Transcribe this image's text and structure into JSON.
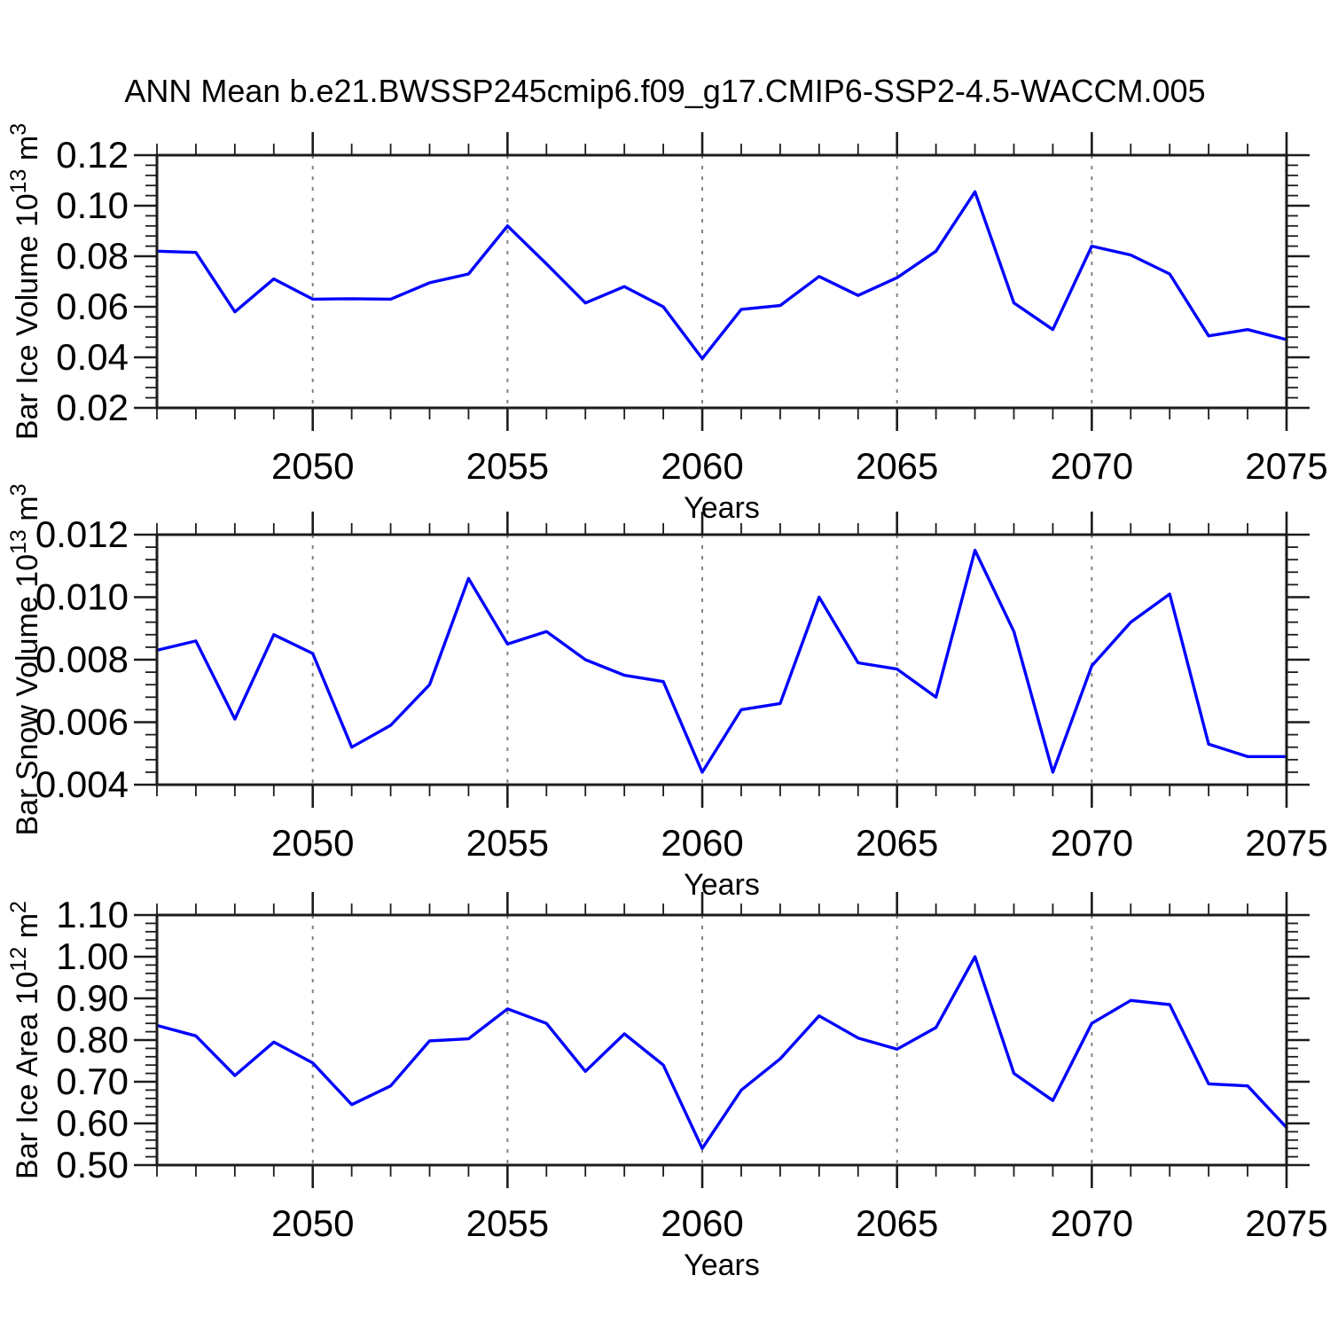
{
  "title": "ANN Mean b.e21.BWSSP245cmip6.f09_g17.CMIP6-SSP2-4.5-WACCM.005",
  "colors": {
    "line": "#0000ff",
    "frame": "#1c1c1c",
    "grid": "#828282",
    "text": "#000000",
    "background": "#ffffff"
  },
  "chart_data": [
    {
      "type": "line",
      "name": "bar-ice-volume",
      "ylabel": "Bar Ice Volume 10^13 m^3",
      "ylabel_parts": [
        {
          "text": "Bar Ice Volume 10"
        },
        {
          "text": "13",
          "sup": true
        },
        {
          "text": " m"
        },
        {
          "text": "3",
          "sup": true
        }
      ],
      "xlabel": "Years",
      "x": [
        2046,
        2047,
        2048,
        2049,
        2050,
        2051,
        2052,
        2053,
        2054,
        2055,
        2056,
        2057,
        2058,
        2059,
        2060,
        2061,
        2062,
        2063,
        2064,
        2065,
        2066,
        2067,
        2068,
        2069,
        2070,
        2071,
        2072,
        2073,
        2074,
        2075
      ],
      "values": [
        0.082,
        0.0815,
        0.058,
        0.071,
        0.063,
        0.0632,
        0.063,
        0.0695,
        0.073,
        0.092,
        0.077,
        0.0615,
        0.068,
        0.06,
        0.0395,
        0.059,
        0.0605,
        0.072,
        0.0645,
        0.0715,
        0.082,
        0.1055,
        0.0615,
        0.051,
        0.084,
        0.0805,
        0.073,
        0.0485,
        0.051,
        0.047
      ],
      "ylim": [
        0.02,
        0.12
      ],
      "ytick_values": [
        0.02,
        0.04,
        0.06,
        0.08,
        0.1,
        0.12
      ],
      "ytick_labels": [
        "0.02",
        "0.04",
        "0.06",
        "0.08",
        "0.10",
        "0.12"
      ],
      "yminor_step": 0.004,
      "xlim": [
        2046,
        2075
      ],
      "xtick_values": [
        2050,
        2055,
        2060,
        2065,
        2070,
        2075
      ],
      "xtick_labels": [
        "2050",
        "2055",
        "2060",
        "2065",
        "2070",
        "2075"
      ],
      "xminor_step": 1,
      "grid_x": [
        2050,
        2055,
        2060,
        2065,
        2070
      ]
    },
    {
      "type": "line",
      "name": "bar-snow-volume",
      "ylabel": "Bar Snow Volume 10^13 m^3",
      "ylabel_parts": [
        {
          "text": "Bar Snow Volume 10"
        },
        {
          "text": "13",
          "sup": true
        },
        {
          "text": " m"
        },
        {
          "text": "3",
          "sup": true
        }
      ],
      "xlabel": "Years",
      "x": [
        2046,
        2047,
        2048,
        2049,
        2050,
        2051,
        2052,
        2053,
        2054,
        2055,
        2056,
        2057,
        2058,
        2059,
        2060,
        2061,
        2062,
        2063,
        2064,
        2065,
        2066,
        2067,
        2068,
        2069,
        2070,
        2071,
        2072,
        2073,
        2074,
        2075
      ],
      "values": [
        0.0083,
        0.0086,
        0.0061,
        0.0088,
        0.0082,
        0.0052,
        0.0059,
        0.0072,
        0.0106,
        0.0085,
        0.0089,
        0.008,
        0.0075,
        0.0073,
        0.0044,
        0.0064,
        0.0066,
        0.01,
        0.0079,
        0.0077,
        0.0068,
        0.0115,
        0.0089,
        0.0044,
        0.0078,
        0.0092,
        0.0101,
        0.0053,
        0.0049,
        0.0049
      ],
      "ylim": [
        0.004,
        0.012
      ],
      "ytick_values": [
        0.004,
        0.006,
        0.008,
        0.01,
        0.012
      ],
      "ytick_labels": [
        "0.004",
        "0.006",
        "0.008",
        "0.010",
        "0.012"
      ],
      "yminor_step": 0.0004,
      "xlim": [
        2046,
        2075
      ],
      "xtick_values": [
        2050,
        2055,
        2060,
        2065,
        2070,
        2075
      ],
      "xtick_labels": [
        "2050",
        "2055",
        "2060",
        "2065",
        "2070",
        "2075"
      ],
      "xminor_step": 1,
      "grid_x": [
        2050,
        2055,
        2060,
        2065,
        2070
      ]
    },
    {
      "type": "line",
      "name": "bar-ice-area",
      "ylabel": "Bar Ice Area 10^12 m^2",
      "ylabel_parts": [
        {
          "text": "Bar Ice Area 10"
        },
        {
          "text": "12",
          "sup": true
        },
        {
          "text": " m"
        },
        {
          "text": "2",
          "sup": true
        }
      ],
      "xlabel": "Years",
      "x": [
        2046,
        2047,
        2048,
        2049,
        2050,
        2051,
        2052,
        2053,
        2054,
        2055,
        2056,
        2057,
        2058,
        2059,
        2060,
        2061,
        2062,
        2063,
        2064,
        2065,
        2066,
        2067,
        2068,
        2069,
        2070,
        2071,
        2072,
        2073,
        2074,
        2075
      ],
      "values": [
        0.835,
        0.81,
        0.715,
        0.795,
        0.745,
        0.645,
        0.69,
        0.798,
        0.803,
        0.875,
        0.84,
        0.725,
        0.815,
        0.74,
        0.54,
        0.68,
        0.755,
        0.858,
        0.805,
        0.778,
        0.83,
        1.0,
        0.72,
        0.655,
        0.84,
        0.895,
        0.885,
        0.695,
        0.69,
        0.59
      ],
      "ylim": [
        0.5,
        1.1
      ],
      "ytick_values": [
        0.5,
        0.6,
        0.7,
        0.8,
        0.9,
        1.0,
        1.1
      ],
      "ytick_labels": [
        "0.50",
        "0.60",
        "0.70",
        "0.80",
        "0.90",
        "1.00",
        "1.10"
      ],
      "yminor_step": 0.02,
      "xlim": [
        2046,
        2075
      ],
      "xtick_values": [
        2050,
        2055,
        2060,
        2065,
        2070,
        2075
      ],
      "xtick_labels": [
        "2050",
        "2055",
        "2060",
        "2065",
        "2070",
        "2075"
      ],
      "xminor_step": 1,
      "grid_x": [
        2050,
        2055,
        2060,
        2065,
        2070
      ]
    }
  ]
}
